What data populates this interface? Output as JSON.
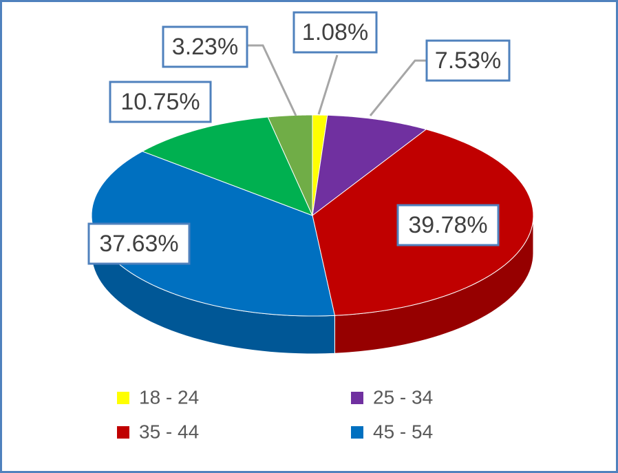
{
  "chart_data": {
    "type": "pie3d",
    "categories": [
      "18 - 24",
      "25 - 34",
      "35 - 44",
      "45 - 54",
      null,
      null
    ],
    "values": [
      1.08,
      7.53,
      39.78,
      37.63,
      10.75,
      3.23
    ],
    "value_labels": [
      "1.08%",
      "7.53%",
      "39.78%",
      "37.63%",
      "10.75%",
      "3.23%"
    ],
    "colors": [
      "#ffff00",
      "#7030a0",
      "#c00000",
      "#0070c0",
      "#00b050",
      "#70ad47"
    ],
    "legend": "bottom"
  }
}
